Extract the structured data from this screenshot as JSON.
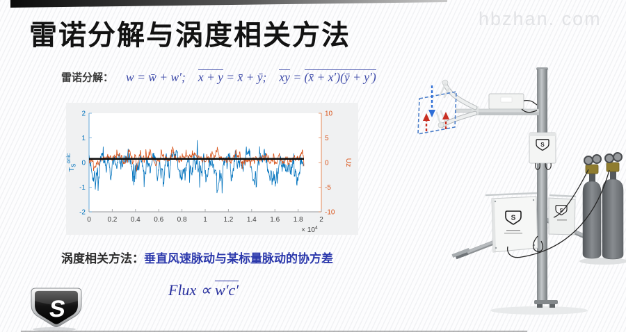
{
  "slide": {
    "title": "雷诺分解与涡度相关方法",
    "watermark": "hbzhan. com",
    "accent_bar_colors": [
      "#0b0b0b",
      "#c8c8c8"
    ]
  },
  "reynolds": {
    "label": "雷诺分解：",
    "eq1": "w = w̄ + w′;",
    "eq2_over": "x + y",
    "eq2_rest": " = x̄ + ȳ;",
    "eq3_over1": "xy",
    "eq3_eq": " = ",
    "eq3_over2": "(x̄ + x′)(ȳ + y′)",
    "math_color": "#3c49a8"
  },
  "eddy": {
    "label": "涡度相关方法：",
    "text": "垂直风速脉动与某标量脉动的协方差",
    "text_color": "#2c39ac"
  },
  "flux": {
    "pre": "Flux ∝ ",
    "over": "w′c′",
    "color": "#28309e"
  },
  "chart_data": {
    "type": "line",
    "title": "",
    "xlabel": "",
    "xlim": [
      0,
      20000
    ],
    "x_ticks": [
      0,
      0.2,
      0.4,
      0.6,
      0.8,
      1,
      1.2,
      1.4,
      1.6,
      1.8,
      2
    ],
    "x_scale_base": "× 10",
    "x_scale_exp": "4",
    "data_end_x": 18500,
    "grid": false,
    "legend": false,
    "background": "#f0f1f2",
    "plot_background": "#ffffff",
    "left_axis": {
      "label_main": "T",
      "label_sub": "S",
      "label_sup": "onic",
      "color": "#0072BD",
      "spine_color": "#7cb5de",
      "ylim": [
        -2,
        2
      ],
      "ticks": [
        2,
        1,
        0,
        -1,
        -2
      ]
    },
    "right_axis": {
      "label": "Uz",
      "color": "#D95319",
      "spine_color": "#e59a72",
      "ylim": [
        -10,
        10
      ],
      "ticks": [
        10,
        5,
        0,
        -5,
        -10
      ]
    },
    "bottom_axis": {
      "spine_color": "#a9abae",
      "tick_color": "#3f3f3f"
    },
    "series": [
      {
        "name": "sonic temperature fluctuation Ts",
        "axis": "left",
        "color": "#0072BD",
        "seed": 7,
        "points": 620,
        "mean": -0.05,
        "persist": 0.86,
        "step": 0.28,
        "spike_prob": 0.1,
        "neg_bias": 0.78,
        "spike_min": 0.2,
        "spike_mag": 0.95,
        "spike_decay": 0.72,
        "clip": [
          -1.52,
          1.08
        ],
        "stroke_width": 0.8
      },
      {
        "name": "vertical wind speed fluctuation Uz",
        "axis": "right",
        "color": "#D95319",
        "seed": 13,
        "points": 620,
        "mean": 0.8,
        "persist": 0.8,
        "step": 0.55,
        "spike_prob": 0.08,
        "neg_bias": 0.5,
        "spike_min": 0.4,
        "spike_mag": 1.9,
        "spike_decay": 0.7,
        "clip": [
          -4.6,
          6.3
        ],
        "stroke_width": 0.8
      },
      {
        "name": "mean value line",
        "type": "hline",
        "axis": "left",
        "color": "#111111",
        "y": 0.15,
        "stroke_width": 2.6
      }
    ]
  },
  "icons": {
    "cs_logo": "campbell-scientific-shield-logo",
    "station": "eddy-covariance-flux-station",
    "sonic": "sonic-anemometer",
    "cylinders": "gas-cylinders",
    "enclosure": "datalogger-enclosure"
  }
}
